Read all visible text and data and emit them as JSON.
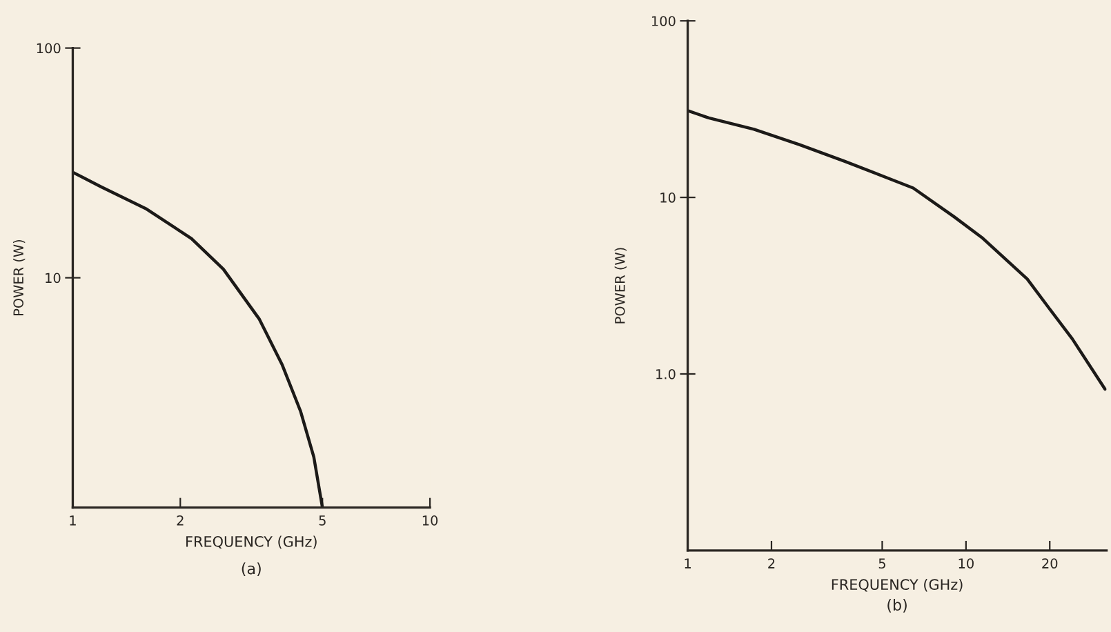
{
  "chart_data": [
    {
      "type": "line",
      "title": "(a)",
      "xlabel": "FREQUENCY (GHz)",
      "ylabel": "POWER (W)",
      "log": "xy",
      "marker": "none",
      "line_style": "solid",
      "xlim": [
        1,
        10
      ],
      "xticks": [
        1,
        2,
        5,
        10
      ],
      "ylim": [
        1,
        100
      ],
      "yticks": [
        10,
        100
      ],
      "series": [
        {
          "color": "#1c1a18",
          "x": [
            1,
            1.2,
            1.61,
            2.15,
            2.64,
            3.33,
            3.86,
            4.34,
            4.73,
            5
          ],
          "values": [
            28.8,
            24.9,
            19.9,
            14.8,
            10.9,
            6.6,
            4.17,
            2.63,
            1.66,
            1
          ]
        }
      ]
    },
    {
      "type": "line",
      "title": "(b)",
      "xlabel": "FREQUENCY (GHz)",
      "ylabel": "POWER (W)",
      "log": "xy",
      "marker": "none",
      "line_style": "solid",
      "xlim": [
        1,
        32
      ],
      "xticks": [
        1,
        2,
        5,
        10,
        20
      ],
      "ylim": [
        0.1,
        100
      ],
      "yticks": [
        {
          "value": 1,
          "label": "1.0"
        },
        10,
        100
      ],
      "series": [
        {
          "color": "#1c1a18",
          "x": [
            1,
            1.19,
            1.73,
            2.52,
            3.67,
            6.46,
            9.06,
            11.4,
            16.6,
            20,
            24.1,
            31.6
          ],
          "values": [
            31,
            28.2,
            24.3,
            19.9,
            16.0,
            11.3,
            7.77,
            5.93,
            3.45,
            2.33,
            1.58,
            0.82
          ]
        }
      ]
    }
  ]
}
